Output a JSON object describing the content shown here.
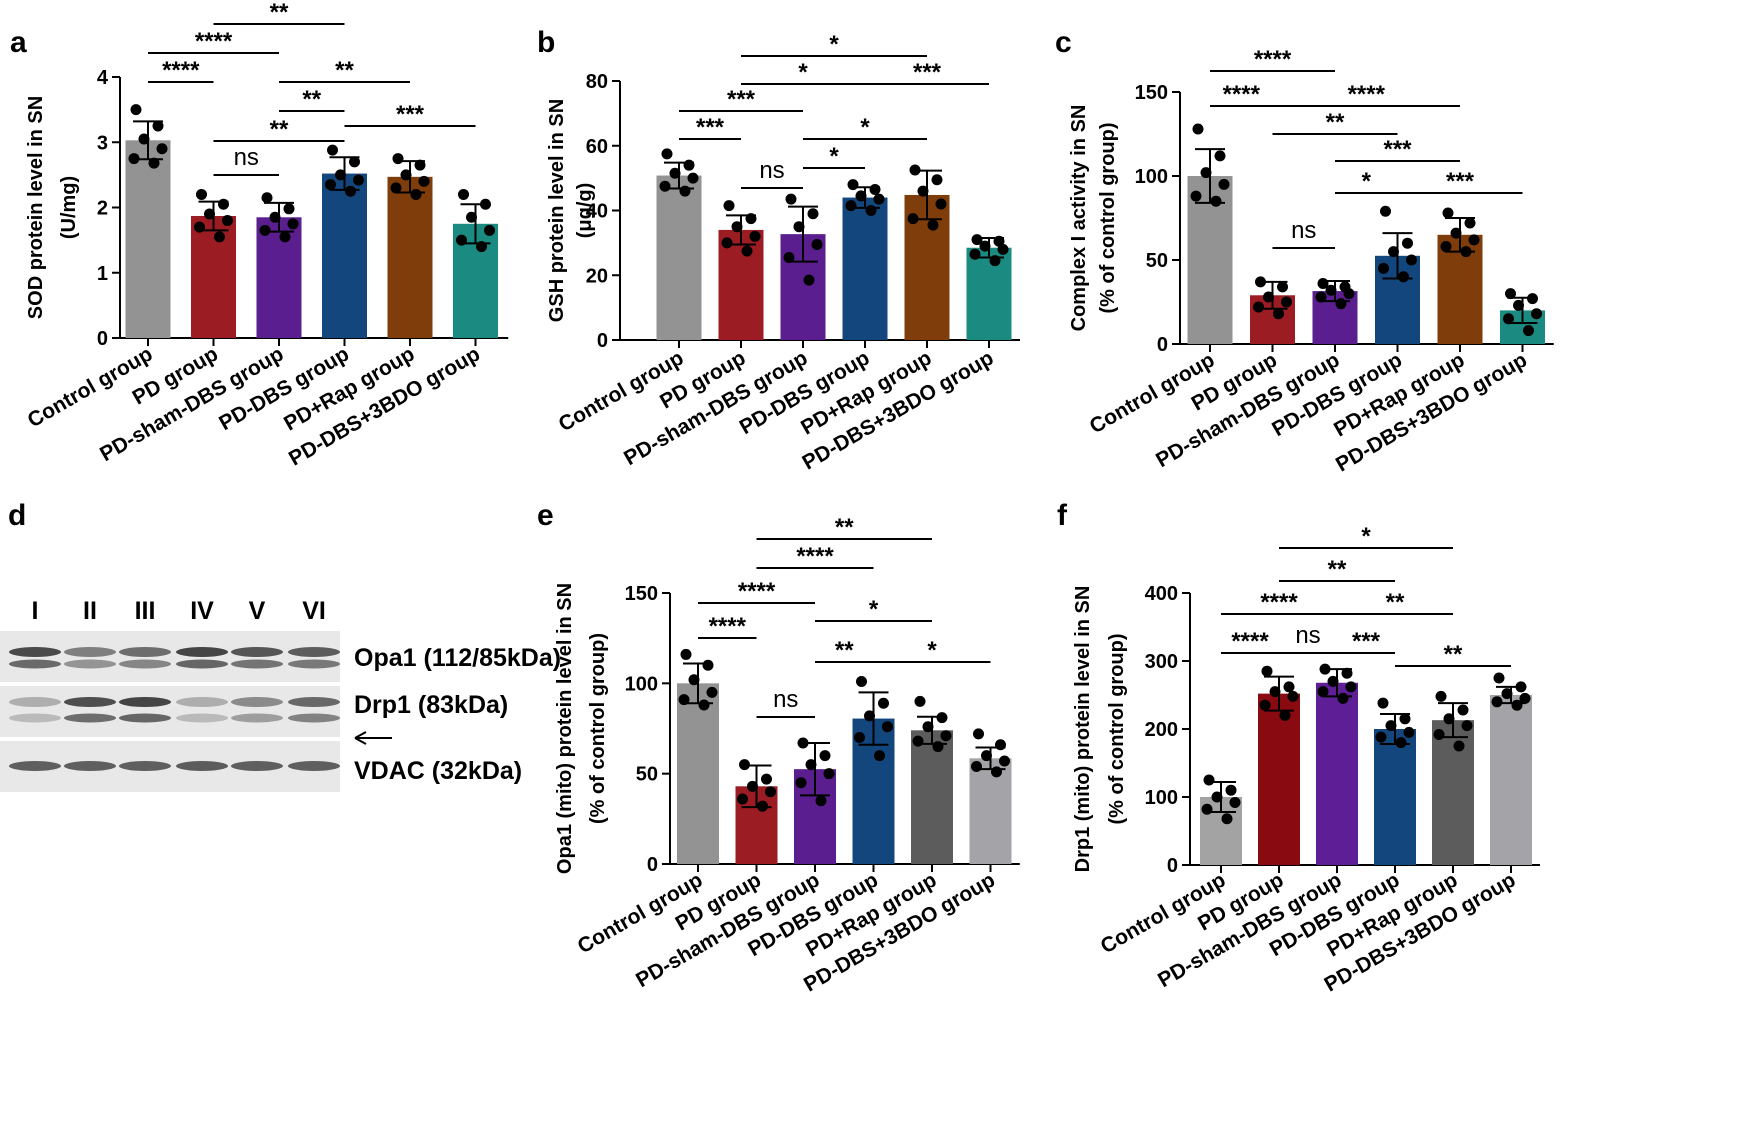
{
  "chart_data": [
    {
      "id": "a",
      "type": "bar",
      "panel_label": "a",
      "ylabel": [
        "SOD protein level in SN",
        "(U/mg)"
      ],
      "ylim": [
        0,
        4
      ],
      "yticks": [
        0,
        1,
        2,
        3,
        4
      ],
      "categories": [
        "Control group",
        "PD group",
        "PD-sham-DBS group",
        "PD-DBS group",
        "PD+Rap group",
        "PD-DBS+3BDO group"
      ],
      "values": [
        3.03,
        1.87,
        1.85,
        2.52,
        2.47,
        1.75
      ],
      "errors": [
        0.29,
        0.22,
        0.22,
        0.25,
        0.24,
        0.3
      ],
      "points": [
        [
          3.5,
          3.25,
          3.05,
          2.9,
          2.75,
          2.68
        ],
        [
          2.2,
          2.05,
          1.9,
          1.8,
          1.7,
          1.55
        ],
        [
          2.15,
          1.98,
          1.85,
          1.75,
          1.65,
          1.55
        ],
        [
          2.88,
          2.7,
          2.5,
          2.42,
          2.35,
          2.25
        ],
        [
          2.75,
          2.65,
          2.5,
          2.4,
          2.3,
          2.2
        ],
        [
          2.2,
          2.05,
          1.85,
          1.65,
          1.5,
          1.4
        ]
      ],
      "colors": [
        "#939393",
        "#9B1C22",
        "#5A1E8E",
        "#13467C",
        "#7E3D0B",
        "#1B8A80"
      ],
      "comparisons": [
        {
          "from": 1,
          "to": 3,
          "label": "**"
        },
        {
          "from": 0,
          "to": 2,
          "label": "****"
        },
        {
          "from": 2,
          "to": 4,
          "label": "**"
        },
        {
          "from": 0,
          "to": 1,
          "label": "****"
        },
        {
          "from": 2,
          "to": 3,
          "label": "**"
        },
        {
          "from": 3,
          "to": 5,
          "label": "***"
        },
        {
          "from": 1,
          "to": 3,
          "label": "**"
        },
        {
          "from": 1,
          "to": 2,
          "label": "ns"
        }
      ]
    },
    {
      "id": "b",
      "type": "bar",
      "panel_label": "b",
      "ylabel": [
        "GSH protein level in SN",
        "(μg/g)"
      ],
      "ylim": [
        0,
        80
      ],
      "yticks": [
        0,
        20,
        40,
        60,
        80
      ],
      "categories": [
        "Control group",
        "PD group",
        "PD-sham-DBS group",
        "PD-DBS group",
        "PD+Rap group",
        "PD-DBS+3BDO group"
      ],
      "values": [
        50.8,
        34,
        32.7,
        44,
        44.8,
        28.5
      ],
      "errors": [
        4,
        4.5,
        8.5,
        3.2,
        7.5,
        3
      ],
      "points": [
        [
          57.5,
          54,
          51.5,
          50,
          47.5,
          46
        ],
        [
          41.5,
          37.5,
          35,
          32,
          30,
          27.5
        ],
        [
          43.5,
          39,
          35,
          29.5,
          25.5,
          18.5
        ],
        [
          48,
          46.5,
          44.5,
          43.5,
          41.5,
          40
        ],
        [
          52.5,
          49.5,
          46,
          42,
          37.5,
          35.5
        ],
        [
          31,
          30.5,
          29,
          28,
          26.5,
          24.5
        ]
      ],
      "colors": [
        "#939393",
        "#9B1C22",
        "#5A1E8E",
        "#13467C",
        "#7E3D0B",
        "#1B8A80"
      ],
      "comparisons": [
        {
          "from": 1,
          "to": 4,
          "label": "*"
        },
        {
          "from": 1,
          "to": 3,
          "label": "*"
        },
        {
          "from": 3,
          "to": 5,
          "label": "***"
        },
        {
          "from": 0,
          "to": 2,
          "label": "***"
        },
        {
          "from": 0,
          "to": 1,
          "label": "***"
        },
        {
          "from": 2,
          "to": 4,
          "label": "*"
        },
        {
          "from": 2,
          "to": 3,
          "label": "*"
        },
        {
          "from": 1,
          "to": 2,
          "label": "ns"
        }
      ]
    },
    {
      "id": "c",
      "type": "bar",
      "panel_label": "c",
      "ylabel": [
        "Complex I activity in SN",
        "(% of control group)"
      ],
      "ylim": [
        0,
        150
      ],
      "yticks": [
        0,
        50,
        100,
        150
      ],
      "categories": [
        "Control group",
        "PD group",
        "PD-sham-DBS group",
        "PD-DBS group",
        "PD+Rap group",
        "PD-DBS+3BDO group"
      ],
      "values": [
        100,
        29,
        31.5,
        52.5,
        65,
        20
      ],
      "errors": [
        16,
        8,
        6,
        13.5,
        10,
        7.5
      ],
      "points": [
        [
          128,
          112,
          102,
          95,
          88,
          85
        ],
        [
          37,
          34,
          28,
          25,
          22,
          18
        ],
        [
          36,
          34,
          32,
          30,
          28,
          24
        ],
        [
          79,
          60,
          55,
          50,
          45,
          40
        ],
        [
          78,
          72,
          66,
          62,
          58,
          55
        ],
        [
          30,
          27,
          23,
          18,
          15,
          8
        ]
      ],
      "colors": [
        "#939393",
        "#9B1C22",
        "#5A1E8E",
        "#13467C",
        "#7E3D0B",
        "#1B8A80"
      ],
      "comparisons": [
        {
          "from": 0,
          "to": 2,
          "label": "****"
        },
        {
          "from": 0,
          "to": 1,
          "label": "****"
        },
        {
          "from": 1,
          "to": 4,
          "label": "****"
        },
        {
          "from": 1,
          "to": 3,
          "label": "**"
        },
        {
          "from": 2,
          "to": 4,
          "label": "***"
        },
        {
          "from": 2,
          "to": 3,
          "label": "*"
        },
        {
          "from": 3,
          "to": 5,
          "label": "***"
        },
        {
          "from": 1,
          "to": 2,
          "label": "ns"
        }
      ]
    },
    {
      "id": "e",
      "type": "bar",
      "panel_label": "e",
      "ylabel": [
        "Opa1 (mito) protein level in SN",
        "(% of control group)"
      ],
      "ylim": [
        0,
        150
      ],
      "yticks": [
        0,
        50,
        100,
        150
      ],
      "categories": [
        "Control group",
        "PD group",
        "PD-sham-DBS group",
        "PD-DBS group",
        "PD+Rap group",
        "PD-DBS+3BDO group"
      ],
      "values": [
        100,
        43,
        52.5,
        80.5,
        74,
        58.5
      ],
      "errors": [
        11,
        11.5,
        14.5,
        14.5,
        7.5,
        6
      ],
      "points": [
        [
          116,
          110,
          102,
          95,
          91,
          88
        ],
        [
          55,
          47,
          43,
          40,
          36,
          32
        ],
        [
          67,
          60,
          55,
          50,
          45,
          35
        ],
        [
          101,
          89,
          82,
          76,
          70,
          60
        ],
        [
          90,
          81,
          76,
          71,
          68,
          65
        ],
        [
          72,
          66,
          60,
          57,
          54,
          51
        ]
      ],
      "colors": [
        "#939393",
        "#9B1C22",
        "#5A1E8E",
        "#13467C",
        "#5C5C5C",
        "#A3A3A8"
      ],
      "comparisons": [
        {
          "from": 1,
          "to": 4,
          "label": "**"
        },
        {
          "from": 1,
          "to": 3,
          "label": "****"
        },
        {
          "from": 0,
          "to": 2,
          "label": "****"
        },
        {
          "from": 2,
          "to": 4,
          "label": "*"
        },
        {
          "from": 0,
          "to": 1,
          "label": "****"
        },
        {
          "from": 2,
          "to": 3,
          "label": "**"
        },
        {
          "from": 3,
          "to": 5,
          "label": "*"
        },
        {
          "from": 1,
          "to": 2,
          "label": "ns"
        }
      ]
    },
    {
      "id": "f",
      "type": "bar",
      "panel_label": "f",
      "ylabel": [
        "Drp1 (mito) protein level in SN",
        "(% of control group)"
      ],
      "ylim": [
        0,
        400
      ],
      "yticks": [
        0,
        100,
        200,
        300,
        400
      ],
      "categories": [
        "Control group",
        "PD group",
        "PD-sham-DBS group",
        "PD-DBS group",
        "PD+Rap group",
        "PD-DBS+3BDO group"
      ],
      "values": [
        100,
        252,
        268,
        200,
        213,
        250
      ],
      "errors": [
        22,
        25,
        20,
        22,
        25,
        12
      ],
      "points": [
        [
          125,
          110,
          100,
          92,
          82,
          68
        ],
        [
          285,
          262,
          255,
          248,
          235,
          220
        ],
        [
          288,
          282,
          270,
          262,
          255,
          245
        ],
        [
          238,
          215,
          205,
          195,
          188,
          180
        ],
        [
          248,
          228,
          215,
          205,
          192,
          175
        ],
        [
          275,
          262,
          252,
          245,
          240,
          235
        ]
      ],
      "colors": [
        "#A3A3A3",
        "#8A0A12",
        "#5E1F96",
        "#13467C",
        "#5C5C5C",
        "#A3A3A8"
      ],
      "comparisons": [
        {
          "from": 1,
          "to": 4,
          "label": "*"
        },
        {
          "from": 1,
          "to": 3,
          "label": "**"
        },
        {
          "from": 0,
          "to": 2,
          "label": "****"
        },
        {
          "from": 2,
          "to": 4,
          "label": "**"
        },
        {
          "from": 0,
          "to": 1,
          "label": "****"
        },
        {
          "from": 1,
          "to": 2,
          "label": "ns"
        },
        {
          "from": 2,
          "to": 3,
          "label": "***"
        },
        {
          "from": 3,
          "to": 5,
          "label": "**"
        }
      ]
    }
  ],
  "blot": {
    "panel_label": "d",
    "lanes": [
      "I",
      "II",
      "III",
      "IV",
      "V",
      "VI"
    ],
    "bands": [
      {
        "label": "Opa1 (112/85kDa)",
        "intensities": [
          0.92,
          0.62,
          0.72,
          0.95,
          0.85,
          0.82
        ]
      },
      {
        "label": "Drp1 (83kDa)",
        "intensities": [
          0.35,
          0.9,
          0.95,
          0.35,
          0.55,
          0.75
        ]
      },
      {
        "label": "VDAC (32kDa)",
        "intensities": [
          0.8,
          0.8,
          0.8,
          0.82,
          0.8,
          0.8
        ]
      }
    ]
  }
}
